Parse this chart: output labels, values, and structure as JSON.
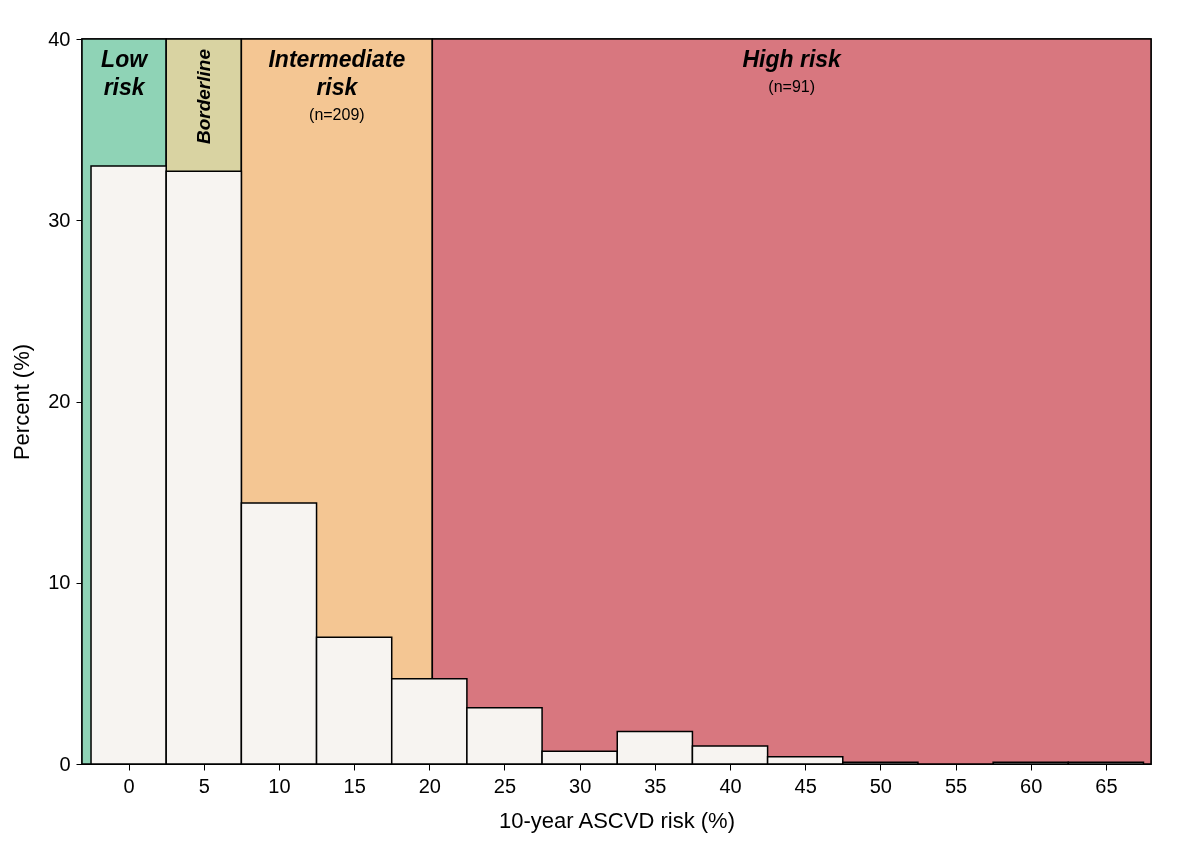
{
  "chart_data": {
    "type": "histogram",
    "xlabel": "10-year ASCVD  risk (%)",
    "ylabel": "Percent (%)",
    "bins": [
      -2.5,
      2.5,
      7.5,
      12.5,
      17.5,
      22.5,
      27.5,
      32.5,
      37.5,
      42.5,
      47.5,
      52.5,
      57.5,
      62.5,
      67.5
    ],
    "values": [
      33.0,
      32.7,
      14.4,
      7.0,
      4.7,
      3.1,
      0.7,
      1.8,
      1.0,
      0.4,
      0.1,
      0.0,
      0.1,
      0.1
    ],
    "color": "#f7f4f1",
    "xlim": [
      -3.1,
      68
    ],
    "xticks": [
      0,
      5,
      10,
      15,
      20,
      25,
      30,
      35,
      40,
      45,
      50,
      55,
      60,
      65
    ],
    "ylim": [
      0,
      40
    ],
    "yticks": [
      0,
      10,
      20,
      30,
      40
    ],
    "grid": false,
    "bands": [
      {
        "axis": "x",
        "from": -3.1,
        "to": 2.5,
        "label": "Low risk",
        "color": "#8fd3b6"
      },
      {
        "axis": "x",
        "from": 2.5,
        "to": 7.5,
        "label": "Borderline",
        "color": "#d9d3a2"
      },
      {
        "axis": "x",
        "from": 7.5,
        "to": 20.2,
        "label": "Intermediate risk",
        "color": "#f4c693"
      },
      {
        "axis": "x",
        "from": 20.2,
        "to": 68,
        "label": "High risk",
        "color": "#d8777f"
      }
    ],
    "annotations": [
      "(n=209)",
      "(n=91)"
    ]
  }
}
